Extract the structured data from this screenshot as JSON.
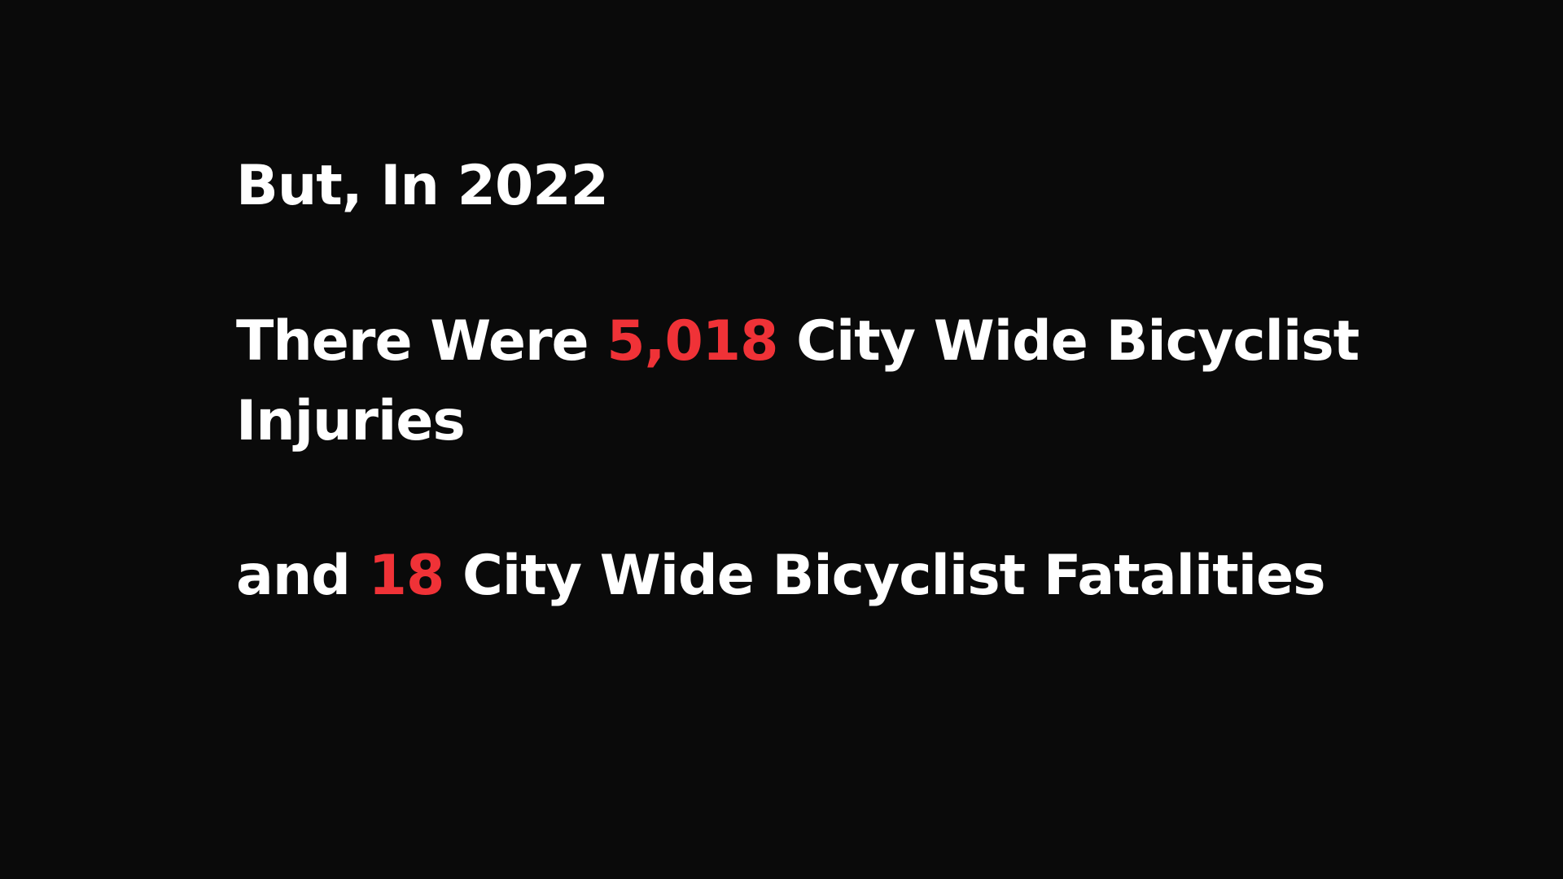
{
  "colors": {
    "background": "#0a0a0a",
    "text": "#ffffff",
    "accent": "#f03237"
  },
  "heading": "But, In 2022",
  "injuries": {
    "prefix": "There Were",
    "number": "5,018",
    "suffix_line1": "City Wide Bicyclist",
    "suffix_line2": "Injuries"
  },
  "fatalities": {
    "prefix": "and",
    "number": "18",
    "suffix": "City Wide Bicyclist Fatalities"
  }
}
